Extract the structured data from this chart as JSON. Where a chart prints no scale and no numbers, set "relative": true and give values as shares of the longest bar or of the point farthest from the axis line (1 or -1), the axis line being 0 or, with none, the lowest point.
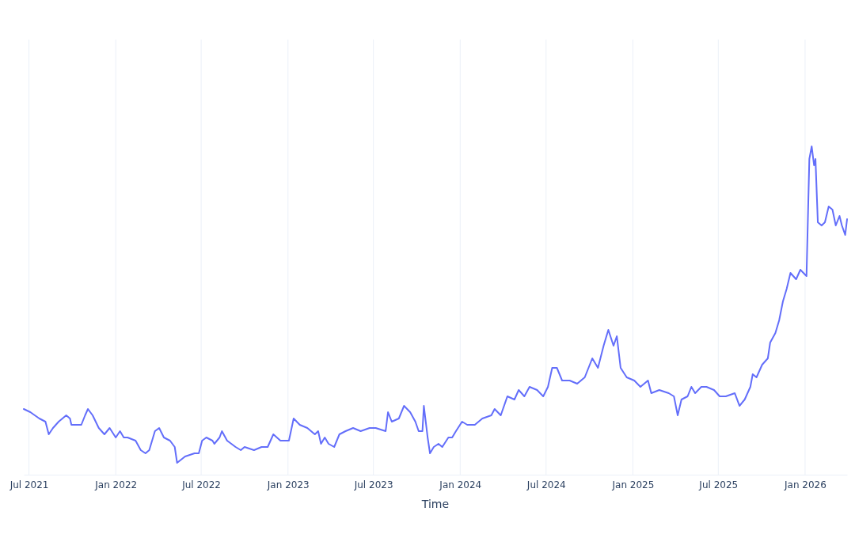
{
  "chart_data": {
    "type": "line",
    "xlabel": "Time",
    "relative": true,
    "grid": "x",
    "marker": "none",
    "line_style": "solid",
    "xlim": [
      "2021-06-20",
      "2026-03-31"
    ],
    "xticks": [
      {
        "value": "2021-07",
        "label": "Jul 2021"
      },
      {
        "value": "2022-01",
        "label": "Jan 2022"
      },
      {
        "value": "2022-07",
        "label": "Jul 2022"
      },
      {
        "value": "2023-01",
        "label": "Jan 2023"
      },
      {
        "value": "2023-07",
        "label": "Jul 2023"
      },
      {
        "value": "2024-01",
        "label": "Jan 2024"
      },
      {
        "value": "2024-07",
        "label": "Jul 2024"
      },
      {
        "value": "2025-01",
        "label": "Jan 2025"
      },
      {
        "value": "2025-07",
        "label": "Jul 2025"
      },
      {
        "value": "2026-01",
        "label": "Jan 2026"
      }
    ],
    "x": [
      "2021-06-20",
      "2021-07-04",
      "2021-07-23",
      "2021-08-05",
      "2021-08-12",
      "2021-08-21",
      "2021-09-02",
      "2021-09-18",
      "2021-09-26",
      "2021-09-29",
      "2021-10-20",
      "2021-10-28",
      "2021-11-03",
      "2021-11-13",
      "2021-11-26",
      "2021-12-08",
      "2021-12-19",
      "2022-01-01",
      "2022-01-10",
      "2022-01-18",
      "2022-01-26",
      "2022-02-12",
      "2022-02-23",
      "2022-03-05",
      "2022-03-13",
      "2022-03-25",
      "2022-04-03",
      "2022-04-13",
      "2022-04-26",
      "2022-05-06",
      "2022-05-11",
      "2022-05-28",
      "2022-06-17",
      "2022-06-26",
      "2022-07-03",
      "2022-07-12",
      "2022-07-25",
      "2022-07-29",
      "2022-08-09",
      "2022-08-14",
      "2022-08-25",
      "2022-09-12",
      "2022-09-23",
      "2022-10-01",
      "2022-10-21",
      "2022-11-06",
      "2022-11-19",
      "2022-12-01",
      "2022-12-16",
      "2023-01-03",
      "2023-01-13",
      "2023-01-26",
      "2023-02-11",
      "2023-02-27",
      "2023-03-06",
      "2023-03-12",
      "2023-03-20",
      "2023-03-28",
      "2023-04-09",
      "2023-04-20",
      "2023-05-03",
      "2023-05-19",
      "2023-06-04",
      "2023-06-23",
      "2023-07-06",
      "2023-07-27",
      "2023-08-01",
      "2023-08-09",
      "2023-08-24",
      "2023-09-04",
      "2023-09-17",
      "2023-09-28",
      "2023-10-05",
      "2023-10-13",
      "2023-10-16",
      "2023-10-24",
      "2023-10-29",
      "2023-11-06",
      "2023-11-16",
      "2023-11-24",
      "2023-12-07",
      "2023-12-15",
      "2023-12-23",
      "2024-01-05",
      "2024-01-16",
      "2024-02-01",
      "2024-02-17",
      "2024-03-07",
      "2024-03-14",
      "2024-03-27",
      "2024-04-10",
      "2024-04-25",
      "2024-05-04",
      "2024-05-16",
      "2024-05-27",
      "2024-06-12",
      "2024-06-25",
      "2024-07-05",
      "2024-07-14",
      "2024-07-24",
      "2024-08-04",
      "2024-08-20",
      "2024-09-05",
      "2024-09-21",
      "2024-10-07",
      "2024-10-19",
      "2024-10-31",
      "2024-11-10",
      "2024-11-21",
      "2024-11-28",
      "2024-12-06",
      "2024-12-19",
      "2025-01-04",
      "2025-01-17",
      "2025-02-02",
      "2025-02-09",
      "2025-02-26",
      "2025-03-18",
      "2025-03-29",
      "2025-04-06",
      "2025-04-14",
      "2025-04-27",
      "2025-05-05",
      "2025-05-13",
      "2025-05-26",
      "2025-06-06",
      "2025-06-22",
      "2025-07-04",
      "2025-07-17",
      "2025-08-05",
      "2025-08-15",
      "2025-08-26",
      "2025-09-07",
      "2025-09-12",
      "2025-09-20",
      "2025-10-02",
      "2025-10-14",
      "2025-10-19",
      "2025-10-30",
      "2025-11-07",
      "2025-11-15",
      "2025-11-23",
      "2025-12-01",
      "2025-12-13",
      "2025-12-22",
      "2026-01-04",
      "2026-01-10",
      "2026-01-15",
      "2026-01-20",
      "2026-01-23",
      "2026-01-28",
      "2026-02-05",
      "2026-02-12",
      "2026-02-20",
      "2026-02-28",
      "2026-03-07",
      "2026-03-15",
      "2026-03-20",
      "2026-03-27",
      "2026-03-31"
    ],
    "series": [
      {
        "color": "#636efa",
        "values": [
          0.17,
          0.16,
          0.14,
          0.13,
          0.09,
          0.11,
          0.13,
          0.15,
          0.14,
          0.12,
          0.12,
          0.15,
          0.17,
          0.15,
          0.11,
          0.09,
          0.11,
          0.08,
          0.1,
          0.08,
          0.08,
          0.07,
          0.04,
          0.03,
          0.04,
          0.1,
          0.11,
          0.08,
          0.07,
          0.05,
          0.0,
          0.02,
          0.03,
          0.03,
          0.07,
          0.08,
          0.07,
          0.06,
          0.08,
          0.1,
          0.07,
          0.05,
          0.04,
          0.05,
          0.04,
          0.05,
          0.05,
          0.09,
          0.07,
          0.07,
          0.14,
          0.12,
          0.11,
          0.09,
          0.1,
          0.06,
          0.08,
          0.06,
          0.05,
          0.09,
          0.1,
          0.11,
          0.1,
          0.11,
          0.11,
          0.1,
          0.16,
          0.13,
          0.14,
          0.18,
          0.16,
          0.13,
          0.1,
          0.1,
          0.18,
          0.08,
          0.03,
          0.05,
          0.06,
          0.05,
          0.08,
          0.08,
          0.1,
          0.13,
          0.12,
          0.12,
          0.14,
          0.15,
          0.17,
          0.15,
          0.21,
          0.2,
          0.23,
          0.21,
          0.24,
          0.23,
          0.21,
          0.24,
          0.3,
          0.3,
          0.26,
          0.26,
          0.25,
          0.27,
          0.33,
          0.3,
          0.37,
          0.42,
          0.37,
          0.4,
          0.3,
          0.27,
          0.26,
          0.24,
          0.26,
          0.22,
          0.23,
          0.22,
          0.21,
          0.15,
          0.2,
          0.21,
          0.24,
          0.22,
          0.24,
          0.24,
          0.23,
          0.21,
          0.21,
          0.22,
          0.18,
          0.2,
          0.24,
          0.28,
          0.27,
          0.31,
          0.33,
          0.38,
          0.41,
          0.45,
          0.51,
          0.55,
          0.6,
          0.58,
          0.61,
          0.59,
          0.96,
          1.0,
          0.94,
          0.96,
          0.76,
          0.75,
          0.76,
          0.81,
          0.8,
          0.75,
          0.78,
          0.75,
          0.72,
          0.77
        ]
      }
    ]
  }
}
